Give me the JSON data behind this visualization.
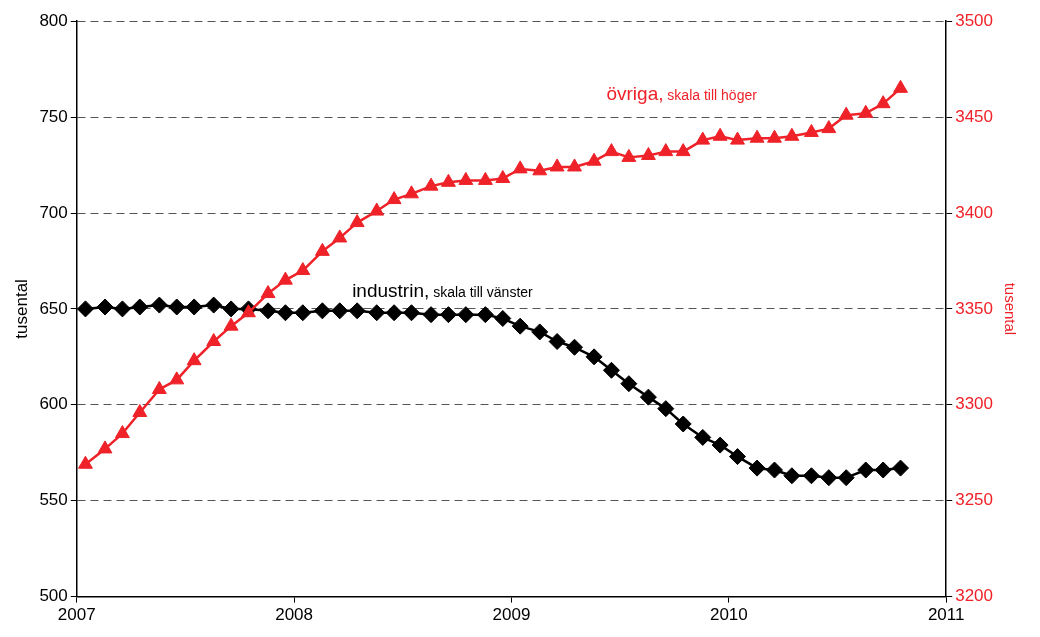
{
  "chart_data": {
    "type": "line",
    "ylabel": "tusental",
    "y2label": "tusental",
    "x": [
      2007.04,
      2007.13,
      2007.21,
      2007.29,
      2007.38,
      2007.46,
      2007.54,
      2007.63,
      2007.71,
      2007.79,
      2007.88,
      2007.96,
      2008.04,
      2008.13,
      2008.21,
      2008.29,
      2008.38,
      2008.46,
      2008.54,
      2008.63,
      2008.71,
      2008.79,
      2008.88,
      2008.96,
      2009.04,
      2009.13,
      2009.21,
      2009.29,
      2009.38,
      2009.46,
      2009.54,
      2009.63,
      2009.71,
      2009.79,
      2009.88,
      2009.96,
      2010.04,
      2010.13,
      2010.21,
      2010.29,
      2010.38,
      2010.46,
      2010.54,
      2010.63,
      2010.71,
      2010.79
    ],
    "series": [
      {
        "name": "industrin, skala till vänster",
        "color": "#000000",
        "marker": "diamond",
        "axis": "y",
        "values": [
          650,
          651,
          650,
          651,
          652,
          651,
          651,
          652,
          650,
          650,
          649,
          648,
          648,
          649,
          649,
          649,
          648,
          648,
          648,
          647,
          647,
          647,
          647,
          645,
          641,
          638,
          633,
          630,
          625,
          618,
          611,
          604,
          598,
          590,
          583,
          579,
          573,
          567,
          566,
          563,
          563,
          562,
          562,
          566,
          566,
          567
        ]
      },
      {
        "name": "övriga, skala till höger",
        "color": "#ee2228",
        "marker": "triangle",
        "axis": "y2",
        "values": [
          3269,
          3277,
          3285,
          3296,
          3308,
          3313,
          3323,
          3333,
          3341,
          3348,
          3358,
          3365,
          3370,
          3380,
          3387,
          3395,
          3401,
          3407,
          3410,
          3414,
          3416,
          3417,
          3417,
          3418,
          3423,
          3422,
          3424,
          3424,
          3427,
          3432,
          3429,
          3430,
          3432,
          3432,
          3438,
          3440,
          3438,
          3439,
          3439,
          3440,
          3442,
          3444,
          3451,
          3452,
          3457,
          3465
        ]
      }
    ],
    "xlim": [
      2007,
      2011
    ],
    "xticks": [
      2007,
      2008,
      2009,
      2010,
      2011
    ],
    "ylim": [
      500,
      800
    ],
    "yticks": [
      500,
      550,
      600,
      650,
      700,
      750,
      800
    ],
    "y2lim": [
      3200,
      3500
    ],
    "y2ticks": [
      3200,
      3250,
      3300,
      3350,
      3400,
      3450,
      3500
    ],
    "grid": "y",
    "legend": false,
    "line_style": "solid"
  }
}
